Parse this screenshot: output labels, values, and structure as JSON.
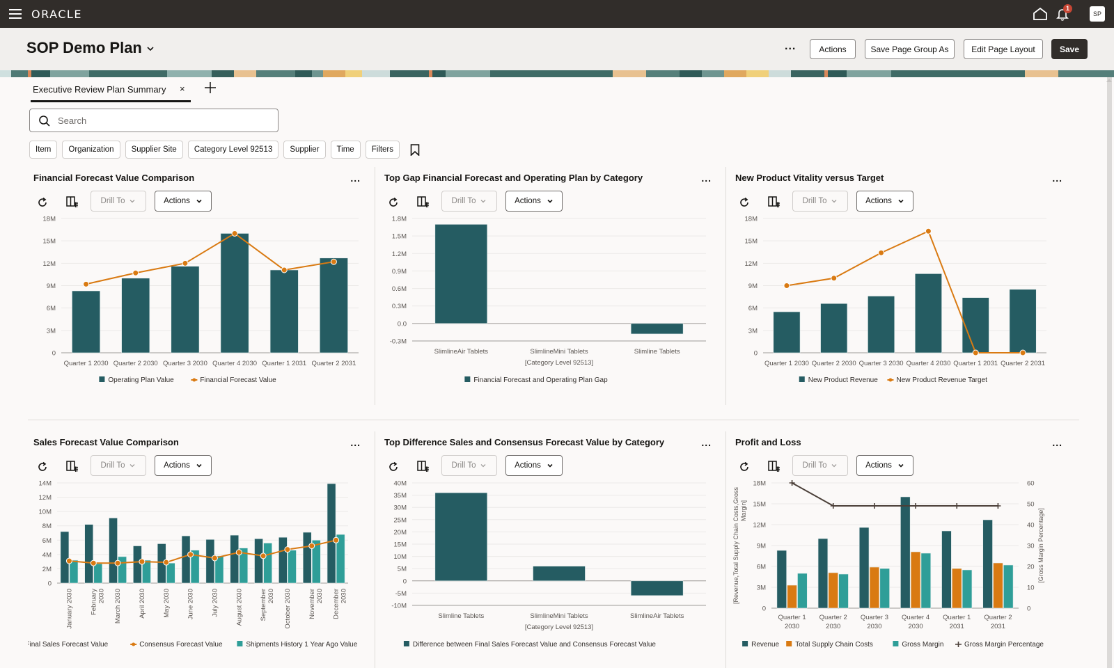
{
  "topbar": {
    "brand": "ORACLE",
    "notification_count": "1",
    "avatar_initials": "SP"
  },
  "header": {
    "title": "SOP Demo Plan",
    "more": "...",
    "actions": "Actions",
    "save_group": "Save Page Group As",
    "edit_layout": "Edit Page Layout",
    "save": "Save"
  },
  "tabs": [
    {
      "label": "Executive Review Plan Summary",
      "close": "×"
    }
  ],
  "search": {
    "placeholder": "Search",
    "value": ""
  },
  "filters": [
    "Item",
    "Organization",
    "Supplier Site",
    "Category Level 92513",
    "Supplier",
    "Time",
    "Filters"
  ],
  "toolbar": {
    "drill": "Drill To",
    "actions": "Actions",
    "more": "..."
  },
  "colors": {
    "teal_dark": "#255c62",
    "orange": "#d97a12",
    "teal_light": "#2f9e98",
    "line_dark": "#4a3f38"
  },
  "chart_data": [
    {
      "type": "bar",
      "title": "Financial Forecast Value Comparison",
      "categories": [
        "Quarter 1 2030",
        "Quarter 2 2030",
        "Quarter 3 2030",
        "Quarter 4 2030",
        "Quarter 1 2031",
        "Quarter 2 2031"
      ],
      "yticks": [
        "0",
        "3M",
        "6M",
        "9M",
        "12M",
        "15M",
        "18M"
      ],
      "ylim": [
        0,
        18
      ],
      "unit": "M",
      "series": [
        {
          "name": "Operating Plan Value",
          "kind": "bar",
          "values": [
            8.3,
            10.0,
            11.6,
            16.0,
            11.1,
            12.7
          ]
        },
        {
          "name": "Financial Forecast Value",
          "kind": "line",
          "values": [
            9.2,
            10.7,
            12.0,
            16.0,
            11.1,
            12.2
          ]
        }
      ]
    },
    {
      "type": "bar",
      "title": "Top Gap Financial Forecast and Operating Plan by Category",
      "categories": [
        "SlimlineAir Tablets",
        "SlimlineMini Tablets",
        "Slimline Tablets"
      ],
      "xlabel": "[Category Level 92513]",
      "yticks": [
        "-0.3M",
        "0.0",
        "0.3M",
        "0.6M",
        "0.9M",
        "1.2M",
        "1.5M",
        "1.8M"
      ],
      "ylim": [
        -0.3,
        1.8
      ],
      "series": [
        {
          "name": "Financial Forecast and Operating Plan Gap",
          "kind": "bar",
          "values": [
            1.7,
            0,
            -0.18
          ]
        }
      ]
    },
    {
      "type": "bar",
      "title": "New Product Vitality versus Target",
      "categories": [
        "Quarter 1 2030",
        "Quarter 2 2030",
        "Quarter 3 2030",
        "Quarter 4 2030",
        "Quarter 1 2031",
        "Quarter 2 2031"
      ],
      "yticks": [
        "0",
        "3M",
        "6M",
        "9M",
        "12M",
        "15M",
        "18M"
      ],
      "ylim": [
        0,
        18
      ],
      "series": [
        {
          "name": "New Product Revenue",
          "kind": "bar",
          "values": [
            5.5,
            6.6,
            7.6,
            10.6,
            7.4,
            8.5
          ]
        },
        {
          "name": "New Product Revenue Target",
          "kind": "line",
          "values": [
            9.0,
            10.0,
            13.4,
            16.3,
            0,
            0
          ]
        }
      ]
    },
    {
      "type": "bar",
      "title": "Sales Forecast Value Comparison",
      "categories": [
        "January 2030",
        "February 2030",
        "March 2030",
        "April 2030",
        "May 2030",
        "June 2030",
        "July 2030",
        "August 2030",
        "September 2030",
        "October 2030",
        "November 2030",
        "December 2030"
      ],
      "yticks": [
        "0",
        "2M",
        "4M",
        "6M",
        "8M",
        "10M",
        "12M",
        "14M"
      ],
      "ylim": [
        0,
        14
      ],
      "series": [
        {
          "name": "Final Sales Forecast Value",
          "kind": "bar",
          "values": [
            7.2,
            8.2,
            9.1,
            5.2,
            5.5,
            6.6,
            6.1,
            6.7,
            6.2,
            6.4,
            7.1,
            13.9
          ]
        },
        {
          "name": "Consensus Forecast Value",
          "kind": "line",
          "values": [
            3.1,
            2.8,
            2.8,
            3.0,
            2.9,
            4.0,
            3.5,
            4.3,
            3.8,
            4.7,
            5.2,
            6.0
          ]
        },
        {
          "name": "Shipments History 1 Year Ago Value",
          "kind": "bar",
          "values": [
            3.2,
            2.7,
            3.7,
            3.2,
            2.8,
            4.6,
            3.8,
            4.9,
            5.6,
            4.6,
            6.0,
            6.8
          ]
        }
      ]
    },
    {
      "type": "bar",
      "title": "Top Difference Sales and Consensus Forecast Value by Category",
      "categories": [
        "Slimline Tablets",
        "SlimlineMini Tablets",
        "SlimlineAir Tablets"
      ],
      "xlabel": "[Category Level 92513]",
      "yticks": [
        "-10M",
        "-5M",
        "0",
        "5M",
        "10M",
        "15M",
        "20M",
        "25M",
        "30M",
        "35M",
        "40M"
      ],
      "ylim": [
        -10,
        40
      ],
      "series": [
        {
          "name": "Difference between Final Sales Forecast Value and Consensus Forecast Value",
          "kind": "bar",
          "values": [
            36,
            6,
            -6
          ]
        }
      ]
    },
    {
      "type": "bar",
      "title": "Profit and Loss",
      "categories": [
        "Quarter 1 2030",
        "Quarter 2 2030",
        "Quarter 3 2030",
        "Quarter 4 2030",
        "Quarter 1 2031",
        "Quarter 2 2031"
      ],
      "yticks": [
        "0",
        "3M",
        "6M",
        "9M",
        "12M",
        "15M",
        "18M"
      ],
      "y2ticks": [
        "0",
        "10",
        "20",
        "30",
        "40",
        "50",
        "60"
      ],
      "ylim": [
        0,
        18
      ],
      "y2lim": [
        0,
        60
      ],
      "ylabel": "[Revenue,Total Supply Chain Costs,Gross Margin]",
      "y2label": "[Gross Margin Percentage]",
      "series": [
        {
          "name": "Revenue",
          "kind": "bar",
          "values": [
            8.3,
            10.0,
            11.6,
            16.0,
            11.1,
            12.7
          ]
        },
        {
          "name": "Total Supply Chain Costs",
          "kind": "bar",
          "values": [
            3.3,
            5.1,
            5.9,
            8.1,
            5.7,
            6.5
          ]
        },
        {
          "name": "Gross Margin",
          "kind": "bar",
          "values": [
            5.0,
            4.9,
            5.7,
            7.9,
            5.5,
            6.2
          ]
        },
        {
          "name": "Gross Margin Percentage",
          "kind": "line2",
          "values": [
            60,
            49,
            49,
            49,
            49,
            49
          ]
        }
      ]
    }
  ]
}
